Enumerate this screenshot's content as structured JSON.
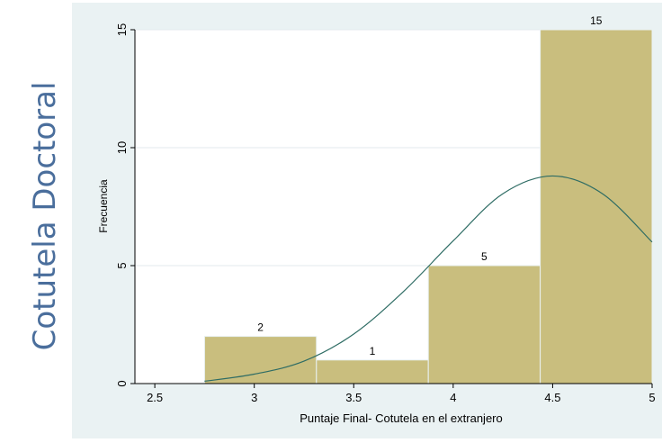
{
  "side_title": "Cotutela Doctoral",
  "chart_data": {
    "type": "histogram",
    "xlabel": "Puntaje Final- Cotutela en el extranjero",
    "ylabel": "Frecuencia",
    "xlim": [
      2.4,
      5.0
    ],
    "ylim": [
      0,
      15
    ],
    "xticks": [
      2.5,
      3,
      3.5,
      4,
      4.5,
      5
    ],
    "xtick_labels": [
      "2.5",
      "3",
      "3.5",
      "4",
      "4.5",
      "5"
    ],
    "yticks": [
      0,
      5,
      10,
      15
    ],
    "ytick_labels": [
      "0",
      "5",
      "10",
      "15"
    ],
    "grid": true,
    "bins": [
      {
        "x0": 2.75,
        "x1": 3.3125,
        "count": 2,
        "label": "2"
      },
      {
        "x0": 3.3125,
        "x1": 3.875,
        "count": 1,
        "label": "1"
      },
      {
        "x0": 3.875,
        "x1": 4.4375,
        "count": 5,
        "label": "5"
      },
      {
        "x0": 4.4375,
        "x1": 5.0,
        "count": 15,
        "label": "15"
      }
    ],
    "density_curve": {
      "x": [
        2.75,
        3.0,
        3.25,
        3.5,
        3.75,
        4.0,
        4.25,
        4.5,
        4.75,
        5.0
      ],
      "y": [
        0.1,
        0.4,
        0.95,
        2.1,
        3.9,
        6.05,
        8.05,
        8.8,
        8.05,
        6.0
      ]
    },
    "colors": {
      "bar_fill": "#c9be7e",
      "bar_edge": "#eaf2f3",
      "curve": "#2e6c64",
      "plot_bg": "#ffffff",
      "outer_bg": "#eaf2f3",
      "grid": "#e3eaec"
    }
  }
}
